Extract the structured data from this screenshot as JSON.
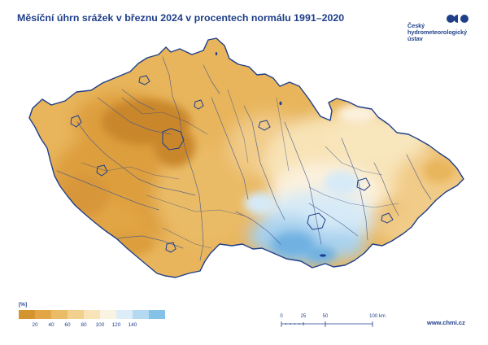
{
  "title": "Měsíční úhrn srážek v březnu 2024 v procentech normálu 1991–2020",
  "logo": {
    "name": "chmi-logo-icon",
    "lines": [
      "Český",
      "hydrometeorologický",
      "ústav"
    ]
  },
  "legend": {
    "unit": "[%]",
    "colors": [
      "#d4952f",
      "#e3a647",
      "#ebbc67",
      "#f2d08d",
      "#f8e4b7",
      "#fbf3e2",
      "#dcedf8",
      "#b5d9f1",
      "#85c2e8"
    ],
    "ticks": [
      "20",
      "40",
      "60",
      "80",
      "100",
      "120",
      "140"
    ]
  },
  "scale": {
    "labels": [
      "0",
      "25",
      "50",
      "100 km"
    ]
  },
  "website": "www.chmi.cz",
  "map_colors": {
    "very_dry": "#c9862c",
    "dry": "#dd9e3d",
    "mid_dry": "#e8b55c",
    "slightly_dry": "#f1cb88",
    "near_normal": "#f8e3b6",
    "normal": "#fbf1dd",
    "wet": "#d6eaf7",
    "wetter": "#a9d1ee",
    "wettest": "#6fb1e1",
    "border": "#1f3f8a",
    "rivers": "#4a5a8a"
  }
}
